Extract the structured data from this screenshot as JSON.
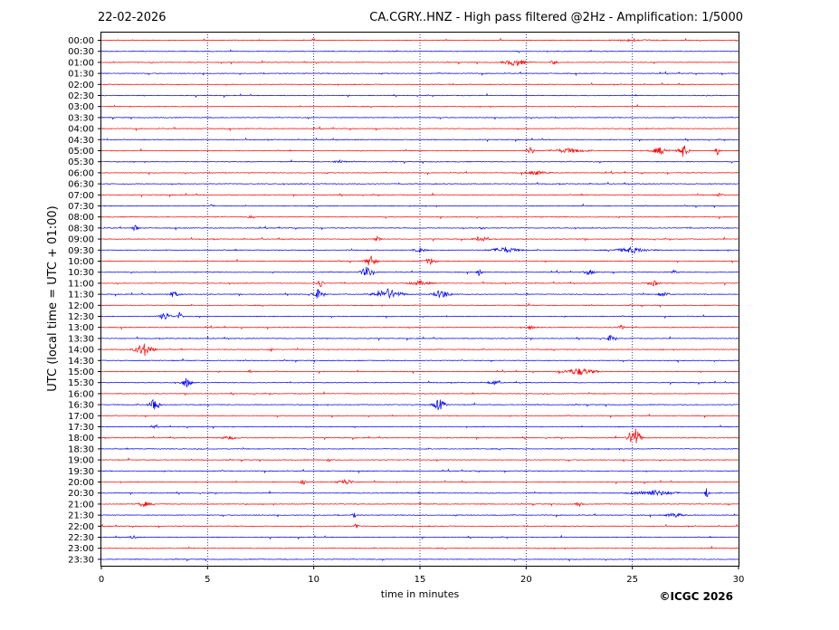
{
  "header": {
    "date": "22-02-2026",
    "title": "CA.CGRY..HNZ - High pass filtered @2Hz - Amplification: 1/5000"
  },
  "footer": {
    "copyright": "©ICGC 2026"
  },
  "colors": {
    "odd_rows": "#ff0000",
    "even_rows": "#0000ff",
    "grid": "#000080"
  },
  "chart_data": {
    "type": "line",
    "title": "CA.CGRY..HNZ - High pass filtered @2Hz - Amplification: 1/5000",
    "xlabel": "time in minutes",
    "ylabel": "UTC (local time = UTC + 01:00)",
    "xlim": [
      0,
      30
    ],
    "x_ticks": [
      0,
      5,
      10,
      15,
      20,
      25,
      30
    ],
    "grid": "vertical dotted lines at 5-minute intervals",
    "row_labels": [
      "00:00",
      "00:30",
      "01:00",
      "01:30",
      "02:00",
      "02:30",
      "03:00",
      "03:30",
      "04:00",
      "04:30",
      "05:00",
      "05:30",
      "06:00",
      "06:30",
      "07:00",
      "07:30",
      "08:00",
      "08:30",
      "09:00",
      "09:30",
      "10:00",
      "10:30",
      "11:00",
      "11:30",
      "12:00",
      "12:30",
      "13:00",
      "13:30",
      "14:00",
      "14:30",
      "15:00",
      "15:30",
      "16:00",
      "16:30",
      "17:00",
      "17:30",
      "18:00",
      "18:30",
      "19:00",
      "19:30",
      "20:00",
      "20:30",
      "21:00",
      "21:30",
      "22:00",
      "22:30",
      "23:00",
      "23:30"
    ],
    "row_color_pattern": [
      "red",
      "blue"
    ],
    "events": [
      {
        "row": "00:00",
        "minute": 25.0,
        "amplitude": 0.15,
        "duration": 4.0
      },
      {
        "row": "01:00",
        "minute": 19.5,
        "amplitude": 0.6,
        "duration": 2.0
      },
      {
        "row": "01:00",
        "minute": 21.3,
        "amplitude": 0.4,
        "duration": 0.5
      },
      {
        "row": "05:00",
        "minute": 20.2,
        "amplitude": 0.7,
        "duration": 0.6
      },
      {
        "row": "05:00",
        "minute": 22.0,
        "amplitude": 0.4,
        "duration": 3.0
      },
      {
        "row": "05:00",
        "minute": 26.3,
        "amplitude": 0.6,
        "duration": 1.5
      },
      {
        "row": "05:00",
        "minute": 27.4,
        "amplitude": 1.2,
        "duration": 0.8
      },
      {
        "row": "05:00",
        "minute": 29.0,
        "amplitude": 1.0,
        "duration": 0.3
      },
      {
        "row": "05:30",
        "minute": 11.2,
        "amplitude": 0.3,
        "duration": 1.0
      },
      {
        "row": "06:00",
        "minute": 20.5,
        "amplitude": 0.35,
        "duration": 2.0
      },
      {
        "row": "07:00",
        "minute": 29.1,
        "amplitude": 0.4,
        "duration": 0.4
      },
      {
        "row": "07:30",
        "minute": 5.2,
        "amplitude": 0.3,
        "duration": 0.3
      },
      {
        "row": "08:00",
        "minute": 7.0,
        "amplitude": 0.3,
        "duration": 0.3
      },
      {
        "row": "08:30",
        "minute": 1.6,
        "amplitude": 0.6,
        "duration": 0.5
      },
      {
        "row": "08:30",
        "minute": 17.9,
        "amplitude": 0.4,
        "duration": 0.5
      },
      {
        "row": "09:00",
        "minute": 13.0,
        "amplitude": 0.4,
        "duration": 0.5
      },
      {
        "row": "09:00",
        "minute": 17.9,
        "amplitude": 0.4,
        "duration": 1.2
      },
      {
        "row": "09:30",
        "minute": 15.0,
        "amplitude": 0.4,
        "duration": 1.0
      },
      {
        "row": "09:30",
        "minute": 19.0,
        "amplitude": 0.5,
        "duration": 2.5
      },
      {
        "row": "09:30",
        "minute": 25.0,
        "amplitude": 0.5,
        "duration": 3.0
      },
      {
        "row": "10:00",
        "minute": 12.7,
        "amplitude": 0.9,
        "duration": 1.0
      },
      {
        "row": "10:00",
        "minute": 15.5,
        "amplitude": 0.6,
        "duration": 1.0
      },
      {
        "row": "10:30",
        "minute": 12.5,
        "amplitude": 1.0,
        "duration": 1.0
      },
      {
        "row": "10:30",
        "minute": 17.8,
        "amplitude": 0.7,
        "duration": 0.3
      },
      {
        "row": "10:30",
        "minute": 23.0,
        "amplitude": 0.4,
        "duration": 1.0
      },
      {
        "row": "10:30",
        "minute": 27.0,
        "amplitude": 0.4,
        "duration": 0.5
      },
      {
        "row": "11:00",
        "minute": 10.3,
        "amplitude": 0.8,
        "duration": 0.5
      },
      {
        "row": "11:00",
        "minute": 15.0,
        "amplitude": 0.4,
        "duration": 2.0
      },
      {
        "row": "11:00",
        "minute": 26.0,
        "amplitude": 0.5,
        "duration": 1.0
      },
      {
        "row": "11:30",
        "minute": 3.4,
        "amplitude": 0.5,
        "duration": 1.0
      },
      {
        "row": "11:30",
        "minute": 10.2,
        "amplitude": 0.8,
        "duration": 1.0
      },
      {
        "row": "11:30",
        "minute": 13.5,
        "amplitude": 0.9,
        "duration": 2.5
      },
      {
        "row": "11:30",
        "minute": 16.0,
        "amplitude": 0.8,
        "duration": 1.5
      },
      {
        "row": "11:30",
        "minute": 26.5,
        "amplitude": 0.4,
        "duration": 1.0
      },
      {
        "row": "12:30",
        "minute": 3.0,
        "amplitude": 0.7,
        "duration": 1.0
      },
      {
        "row": "12:30",
        "minute": 3.7,
        "amplitude": 0.8,
        "duration": 0.4
      },
      {
        "row": "13:00",
        "minute": 20.2,
        "amplitude": 0.4,
        "duration": 0.6
      },
      {
        "row": "13:00",
        "minute": 24.5,
        "amplitude": 0.4,
        "duration": 0.6
      },
      {
        "row": "13:30",
        "minute": 24.0,
        "amplitude": 0.6,
        "duration": 0.8
      },
      {
        "row": "14:00",
        "minute": 2.0,
        "amplitude": 1.2,
        "duration": 1.5
      },
      {
        "row": "14:00",
        "minute": 8.0,
        "amplitude": 0.3,
        "duration": 0.3
      },
      {
        "row": "15:00",
        "minute": 7.0,
        "amplitude": 0.3,
        "duration": 0.3
      },
      {
        "row": "15:00",
        "minute": 22.5,
        "amplitude": 0.6,
        "duration": 3.0
      },
      {
        "row": "15:30",
        "minute": 4.0,
        "amplitude": 0.9,
        "duration": 0.8
      },
      {
        "row": "15:30",
        "minute": 18.5,
        "amplitude": 0.4,
        "duration": 1.0
      },
      {
        "row": "16:30",
        "minute": 2.5,
        "amplitude": 1.5,
        "duration": 0.8
      },
      {
        "row": "16:30",
        "minute": 15.9,
        "amplitude": 1.1,
        "duration": 1.0
      },
      {
        "row": "17:30",
        "minute": 2.5,
        "amplitude": 0.3,
        "duration": 0.3
      },
      {
        "row": "18:00",
        "minute": 25.1,
        "amplitude": 2.2,
        "duration": 1.0
      },
      {
        "row": "18:00",
        "minute": 6.0,
        "amplitude": 0.3,
        "duration": 1.5
      },
      {
        "row": "19:00",
        "minute": 10.7,
        "amplitude": 0.3,
        "duration": 0.3
      },
      {
        "row": "20:00",
        "minute": 9.5,
        "amplitude": 0.6,
        "duration": 0.4
      },
      {
        "row": "20:00",
        "minute": 11.5,
        "amplitude": 0.5,
        "duration": 1.5
      },
      {
        "row": "20:30",
        "minute": 26.0,
        "amplitude": 0.5,
        "duration": 4.0
      },
      {
        "row": "20:30",
        "minute": 28.5,
        "amplitude": 1.0,
        "duration": 0.3
      },
      {
        "row": "21:00",
        "minute": 2.0,
        "amplitude": 0.5,
        "duration": 1.0
      },
      {
        "row": "21:00",
        "minute": 22.5,
        "amplitude": 0.4,
        "duration": 0.5
      },
      {
        "row": "21:30",
        "minute": 11.9,
        "amplitude": 0.4,
        "duration": 0.4
      },
      {
        "row": "21:30",
        "minute": 27.0,
        "amplitude": 0.4,
        "duration": 1.5
      },
      {
        "row": "22:00",
        "minute": 12.0,
        "amplitude": 0.5,
        "duration": 0.3
      },
      {
        "row": "22:30",
        "minute": 1.5,
        "amplitude": 0.3,
        "duration": 0.5
      }
    ]
  }
}
